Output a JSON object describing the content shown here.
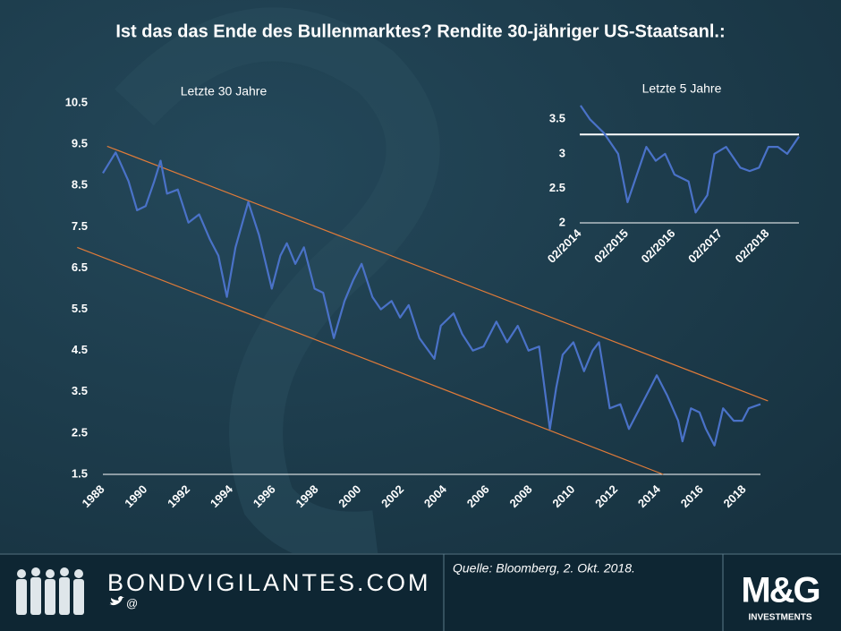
{
  "title": "Ist das das Ende des Bullenmarktes?  Rendite 30-jähriger US-Staatsanl.:",
  "chart_data": [
    {
      "type": "line",
      "title": "Letzte 30 Jahre",
      "color": "#4a72c8",
      "x": [
        1988.0,
        1988.6,
        1989.2,
        1989.6,
        1990.0,
        1990.4,
        1990.7,
        1991.0,
        1991.5,
        1992.0,
        1992.5,
        1993.0,
        1993.4,
        1993.8,
        1994.2,
        1994.8,
        1995.3,
        1995.9,
        1996.3,
        1996.6,
        1997.0,
        1997.4,
        1997.9,
        1998.3,
        1998.8,
        1999.3,
        1999.7,
        2000.1,
        2000.6,
        2001.0,
        2001.5,
        2001.9,
        2002.3,
        2002.8,
        2003.5,
        2003.8,
        2004.4,
        2004.8,
        2005.3,
        2005.8,
        2006.4,
        2006.9,
        2007.4,
        2007.9,
        2008.4,
        2008.9,
        2009.2,
        2009.5,
        2010.0,
        2010.5,
        2010.9,
        2011.2,
        2011.7,
        2012.2,
        2012.6,
        2013.0,
        2013.6,
        2013.9,
        2014.4,
        2014.9,
        2015.1,
        2015.5,
        2015.9,
        2016.2,
        2016.6,
        2017.0,
        2017.5,
        2017.9,
        2018.2,
        2018.75
      ],
      "values": [
        8.8,
        9.3,
        8.6,
        7.9,
        8.0,
        8.6,
        9.1,
        8.3,
        8.4,
        7.6,
        7.8,
        7.2,
        6.8,
        5.8,
        7.0,
        8.1,
        7.3,
        6.0,
        6.8,
        7.1,
        6.6,
        7.0,
        6.0,
        5.9,
        4.8,
        5.7,
        6.2,
        6.6,
        5.8,
        5.5,
        5.7,
        5.3,
        5.6,
        4.8,
        4.3,
        5.1,
        5.4,
        4.9,
        4.5,
        4.6,
        5.2,
        4.7,
        5.1,
        4.5,
        4.6,
        2.6,
        3.6,
        4.4,
        4.7,
        4.0,
        4.5,
        4.7,
        3.1,
        3.2,
        2.6,
        3.0,
        3.6,
        3.9,
        3.4,
        2.8,
        2.3,
        3.1,
        3.0,
        2.6,
        2.2,
        3.1,
        2.8,
        2.8,
        3.1,
        3.2
      ],
      "xlim": [
        1988,
        2018.75
      ],
      "xticks": [
        1988,
        1990,
        1992,
        1994,
        1996,
        1998,
        2000,
        2002,
        2004,
        2006,
        2008,
        2010,
        2012,
        2014,
        2016,
        2018
      ],
      "ylim": [
        1.5,
        10.5
      ],
      "yticks": [
        1.5,
        2.5,
        3.5,
        4.5,
        5.5,
        6.5,
        7.5,
        8.5,
        9.5,
        10.5
      ],
      "trend_lines": [
        {
          "color": "#e07b39",
          "x": [
            1988.2,
            2019.1
          ],
          "values": [
            9.45,
            3.28
          ]
        },
        {
          "color": "#e07b39",
          "x": [
            1986.8,
            2014.2
          ],
          "values": [
            7.0,
            1.5
          ]
        }
      ]
    },
    {
      "type": "line",
      "title": "Letzte 5 Jahre",
      "color": "#4a72c8",
      "x": [
        2014.1,
        2014.3,
        2014.6,
        2014.9,
        2015.1,
        2015.3,
        2015.5,
        2015.7,
        2015.9,
        2016.1,
        2016.4,
        2016.55,
        2016.8,
        2016.95,
        2017.2,
        2017.5,
        2017.7,
        2017.9,
        2018.1,
        2018.3,
        2018.5,
        2018.75
      ],
      "values": [
        3.7,
        3.5,
        3.3,
        3.0,
        2.3,
        2.7,
        3.1,
        2.9,
        3.0,
        2.7,
        2.6,
        2.15,
        2.4,
        3.0,
        3.1,
        2.8,
        2.75,
        2.8,
        3.1,
        3.1,
        3.0,
        3.25
      ],
      "xlim": [
        2014.083,
        2018.75
      ],
      "xticks": [
        {
          "value": 2014.083,
          "label": "02/2014"
        },
        {
          "value": 2015.083,
          "label": "02/2015"
        },
        {
          "value": 2016.083,
          "label": "02/2016"
        },
        {
          "value": 2017.083,
          "label": "02/2017"
        },
        {
          "value": 2018.083,
          "label": "02/2018"
        }
      ],
      "ylim": [
        2,
        3.75
      ],
      "yticks": [
        2,
        2.5,
        3,
        3.5
      ],
      "reference_lines": [
        {
          "value": 3.28,
          "color": "#ffffff"
        }
      ]
    }
  ],
  "footer": {
    "site": "BONDVIGILANTES.COM",
    "handle": "@",
    "source": "Quelle: Bloomberg, 2. Okt. 2018.",
    "logo": "M&G",
    "logo_sub": "INVESTMENTS"
  }
}
